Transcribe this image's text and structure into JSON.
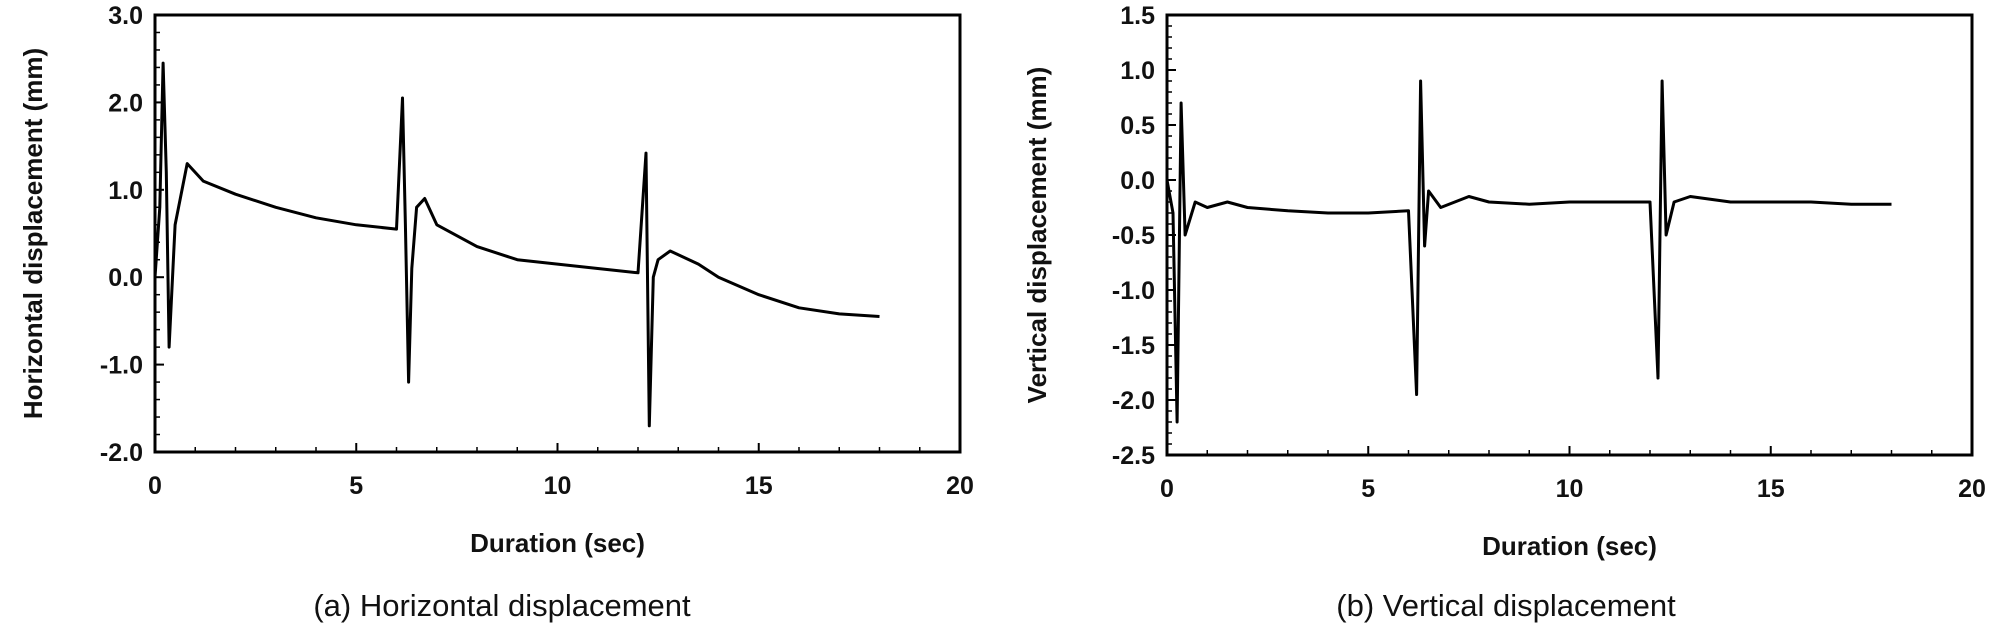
{
  "chart_data": [
    {
      "type": "line",
      "panel": "a",
      "caption": "(a)  Horizontal displacement",
      "xlabel": "Duration (sec)",
      "ylabel": "Horizontal displacement (mm)",
      "xlim": [
        0,
        20
      ],
      "ylim": [
        -2.0,
        3.0
      ],
      "xticks": [
        "0",
        "5",
        "10",
        "15",
        "20"
      ],
      "yticks": [
        "3.0",
        "2.0",
        "1.0",
        "0.0",
        "-1.0",
        "-2.0"
      ],
      "grid": false,
      "line_color": "#000000",
      "series": [
        {
          "x": [
            0,
            0.12,
            0.2,
            0.28,
            0.35,
            0.5,
            0.8,
            1.2,
            2,
            3,
            4,
            5,
            6.0,
            6.15,
            6.22,
            6.3,
            6.38,
            6.5,
            6.7,
            7,
            8,
            9,
            10,
            11,
            12.0,
            12.2,
            12.28,
            12.38,
            12.5,
            12.8,
            13.5,
            14,
            15,
            16,
            17,
            18
          ],
          "y": [
            0.0,
            0.8,
            2.45,
            1.2,
            -0.8,
            0.6,
            1.3,
            1.1,
            0.95,
            0.8,
            0.68,
            0.6,
            0.55,
            2.05,
            0.6,
            -1.2,
            0.1,
            0.8,
            0.9,
            0.6,
            0.35,
            0.2,
            0.15,
            0.1,
            0.05,
            1.42,
            -1.7,
            0.0,
            0.2,
            0.3,
            0.15,
            0.0,
            -0.2,
            -0.35,
            -0.42,
            -0.45
          ]
        }
      ]
    },
    {
      "type": "line",
      "panel": "b",
      "caption": "(b)  Vertical displacement",
      "xlabel": "Duration (sec)",
      "ylabel": "Vertical displacement (mm)",
      "xlim": [
        0,
        20
      ],
      "ylim": [
        -2.5,
        1.5
      ],
      "xticks": [
        "0",
        "5",
        "10",
        "15",
        "20"
      ],
      "yticks": [
        "1.5",
        "1.0",
        "0.5",
        "0.0",
        "-0.5",
        "-1.0",
        "-1.5",
        "-2.0",
        "-2.5"
      ],
      "grid": false,
      "line_color": "#000000",
      "series": [
        {
          "x": [
            0,
            0.15,
            0.25,
            0.35,
            0.45,
            0.7,
            1.0,
            1.5,
            2,
            3,
            4,
            5,
            6.0,
            6.2,
            6.3,
            6.4,
            6.5,
            6.8,
            7.5,
            8,
            9,
            10,
            11,
            12.0,
            12.2,
            12.3,
            12.4,
            12.6,
            13,
            14,
            15,
            16,
            17,
            18
          ],
          "y": [
            0.0,
            -0.3,
            -2.2,
            0.7,
            -0.5,
            -0.2,
            -0.25,
            -0.2,
            -0.25,
            -0.28,
            -0.3,
            -0.3,
            -0.28,
            -1.95,
            0.9,
            -0.6,
            -0.1,
            -0.25,
            -0.15,
            -0.2,
            -0.22,
            -0.2,
            -0.2,
            -0.2,
            -1.8,
            0.9,
            -0.5,
            -0.2,
            -0.15,
            -0.2,
            -0.2,
            -0.2,
            -0.22,
            -0.22
          ]
        }
      ]
    }
  ]
}
